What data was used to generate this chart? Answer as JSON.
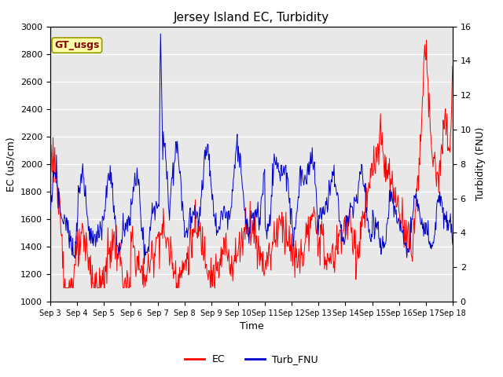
{
  "title": "Jersey Island EC, Turbidity",
  "xlabel": "Time",
  "ylabel_left": "EC (uS/cm)",
  "ylabel_right": "Turbidity (FNU)",
  "annotation": "GT_usgs",
  "ylim_left": [
    1000,
    3000
  ],
  "ylim_right": [
    0,
    16
  ],
  "yticks_left": [
    1000,
    1200,
    1400,
    1600,
    1800,
    2000,
    2200,
    2400,
    2600,
    2800,
    3000
  ],
  "yticks_right": [
    0,
    2,
    4,
    6,
    8,
    10,
    12,
    14,
    16
  ],
  "ec_color": "#FF0000",
  "turb_color": "#0000CC",
  "bg_color": "#E8E8E8",
  "legend_ec": "EC",
  "legend_turb": "Turb_FNU",
  "xtick_labels": [
    "Sep 3",
    "Sep 4",
    "Sep 5",
    "Sep 6",
    "Sep 7",
    "Sep 8",
    "Sep 9",
    "Sep 10",
    "Sep 11",
    "Sep 12",
    "Sep 13",
    "Sep 14",
    "Sep 15",
    "Sep 16",
    "Sep 17",
    "Sep 18"
  ],
  "figwidth": 6.4,
  "figheight": 4.8,
  "dpi": 100,
  "title_fontsize": 11,
  "label_fontsize": 9,
  "tick_fontsize": 8,
  "annot_fontsize": 9,
  "legend_fontsize": 9
}
